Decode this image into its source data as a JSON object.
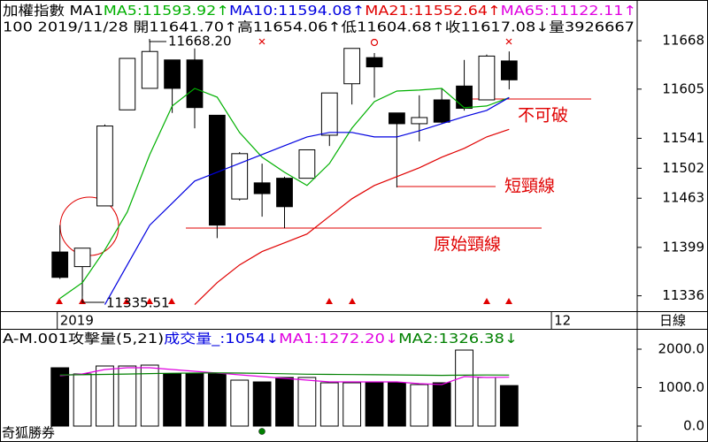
{
  "chart_data": [
    {
      "type": "candlestick",
      "title": "加權指數 MA1",
      "info": "100 2019/11/28 開11641.70↑高11654.06↑低11604.68↑收11617.08↓量3926667",
      "open": [
        11393,
        11374,
        11453,
        11578,
        11606,
        11643,
        11643,
        11571,
        11462,
        11483,
        11489,
        11489,
        11545,
        11612,
        11646,
        11574,
        11560,
        11591,
        11609,
        11591,
        11641.7
      ],
      "high": [
        11428,
        11398,
        11559,
        11645,
        11668.2,
        11643,
        11658,
        11571,
        11523,
        11508,
        11491,
        11526,
        11600,
        11658,
        11652,
        11574,
        11597,
        11606,
        11643,
        11650,
        11654.06
      ],
      "low": [
        11358,
        11335.51,
        11453,
        11578,
        11606,
        11574,
        11554,
        11411,
        11460,
        11439,
        11424,
        11489,
        11531,
        11585,
        11594,
        11477,
        11537,
        11560,
        11577,
        11591,
        11604.68
      ],
      "close": [
        11360,
        11398,
        11557,
        11645,
        11654,
        11606,
        11581,
        11428,
        11521,
        11469,
        11452,
        11526,
        11600,
        11658,
        11634,
        11560,
        11568,
        11562,
        11580,
        11648,
        11617.08
      ],
      "series": [
        {
          "name": "MA5:11593.92↑",
          "color": "#00b000",
          "values": [
            11332.6,
            11353.2,
            11395.7,
            11445.1,
            11519.8,
            11583.0,
            11606.0,
            11594.5,
            11548.5,
            11516.4,
            11496.8,
            11479.6,
            11508.3,
            11554.3,
            11588.7,
            11602.5,
            11603.7,
            11606.0,
            11580.7,
            11583.0,
            11593.92
          ]
        },
        {
          "name": "MA10:11594.08↑",
          "color": "#0000e0",
          "values": [
            null,
            null,
            11324.5,
            11376.2,
            11428.0,
            11456.6,
            11485.4,
            11496.9,
            11508.4,
            11519.9,
            11531.4,
            11542.8,
            11548.6,
            11548.6,
            11542.8,
            11542.8,
            11550.8,
            11560.0,
            11569.2,
            11577.3,
            11594.08
          ]
        },
        {
          "name": "MA21:11552.64↑",
          "color": "#e00000",
          "values": [
            null,
            null,
            null,
            null,
            null,
            null,
            11324.5,
            11353.2,
            11376.2,
            11393.5,
            11404.9,
            11416.4,
            11439.4,
            11462.4,
            11479.6,
            11491.1,
            11502.6,
            11516.4,
            11527.9,
            11542.8,
            11552.64
          ]
        }
      ],
      "extra_legend": {
        "text": "MA65:11122.11↑",
        "color": "#e000e0"
      },
      "ylim": [
        11316,
        11721
      ],
      "yticks": [
        11336,
        11399,
        11463,
        11502,
        11541,
        11605,
        11668
      ],
      "xlim": [
        -0.5,
        25.7
      ],
      "xticks": [
        {
          "value": 0,
          "label": "2019"
        },
        {
          "value": 22,
          "label": "12"
        }
      ],
      "annotations": [
        "11668.20",
        "11335.51",
        "不可破",
        "短頸線",
        "原始頸線"
      ]
    },
    {
      "type": "volume",
      "title": "A-M.001攻擊量(5,21)",
      "volume": {
        "name": "成交量_:1054↓",
        "color": "#0000e0",
        "values": [
          1517,
          1356,
          1563,
          1563,
          1586,
          1356,
          1356,
          1356,
          1195,
          1149,
          1264,
          1264,
          1126,
          1126,
          1149,
          1126,
          1080,
          1126,
          1977,
          1264,
          1054
        ]
      },
      "series": [
        {
          "name": "MA1:1272.20↓",
          "color": "#e000e0",
          "values": [
            1310,
            1356,
            1471,
            1517,
            1517,
            1471,
            1425,
            1379,
            1333,
            1287,
            1241,
            1195,
            1149,
            1149,
            1149,
            1149,
            1103,
            1080,
            1287,
            1264,
            1272.2
          ]
        },
        {
          "name": "MA2:1326.38↓",
          "color": "#008000",
          "values": [
            1330,
            1335,
            1345,
            1355,
            1365,
            1375,
            1380,
            1385,
            1380,
            1370,
            1360,
            1350,
            1345,
            1340,
            1335,
            1330,
            1325,
            1320,
            1325,
            1328,
            1326.38
          ]
        }
      ],
      "ylim": [
        -414,
        2506
      ],
      "yticks": [
        {
          "value": 0,
          "label": "0.0"
        },
        {
          "value": 1000,
          "label": "1000.0"
        },
        {
          "value": 2000,
          "label": "2000.0"
        }
      ],
      "xlim": [
        -0.5,
        25.7
      ]
    }
  ],
  "labels": {
    "period": "日線",
    "brand": "奇狐勝券"
  }
}
